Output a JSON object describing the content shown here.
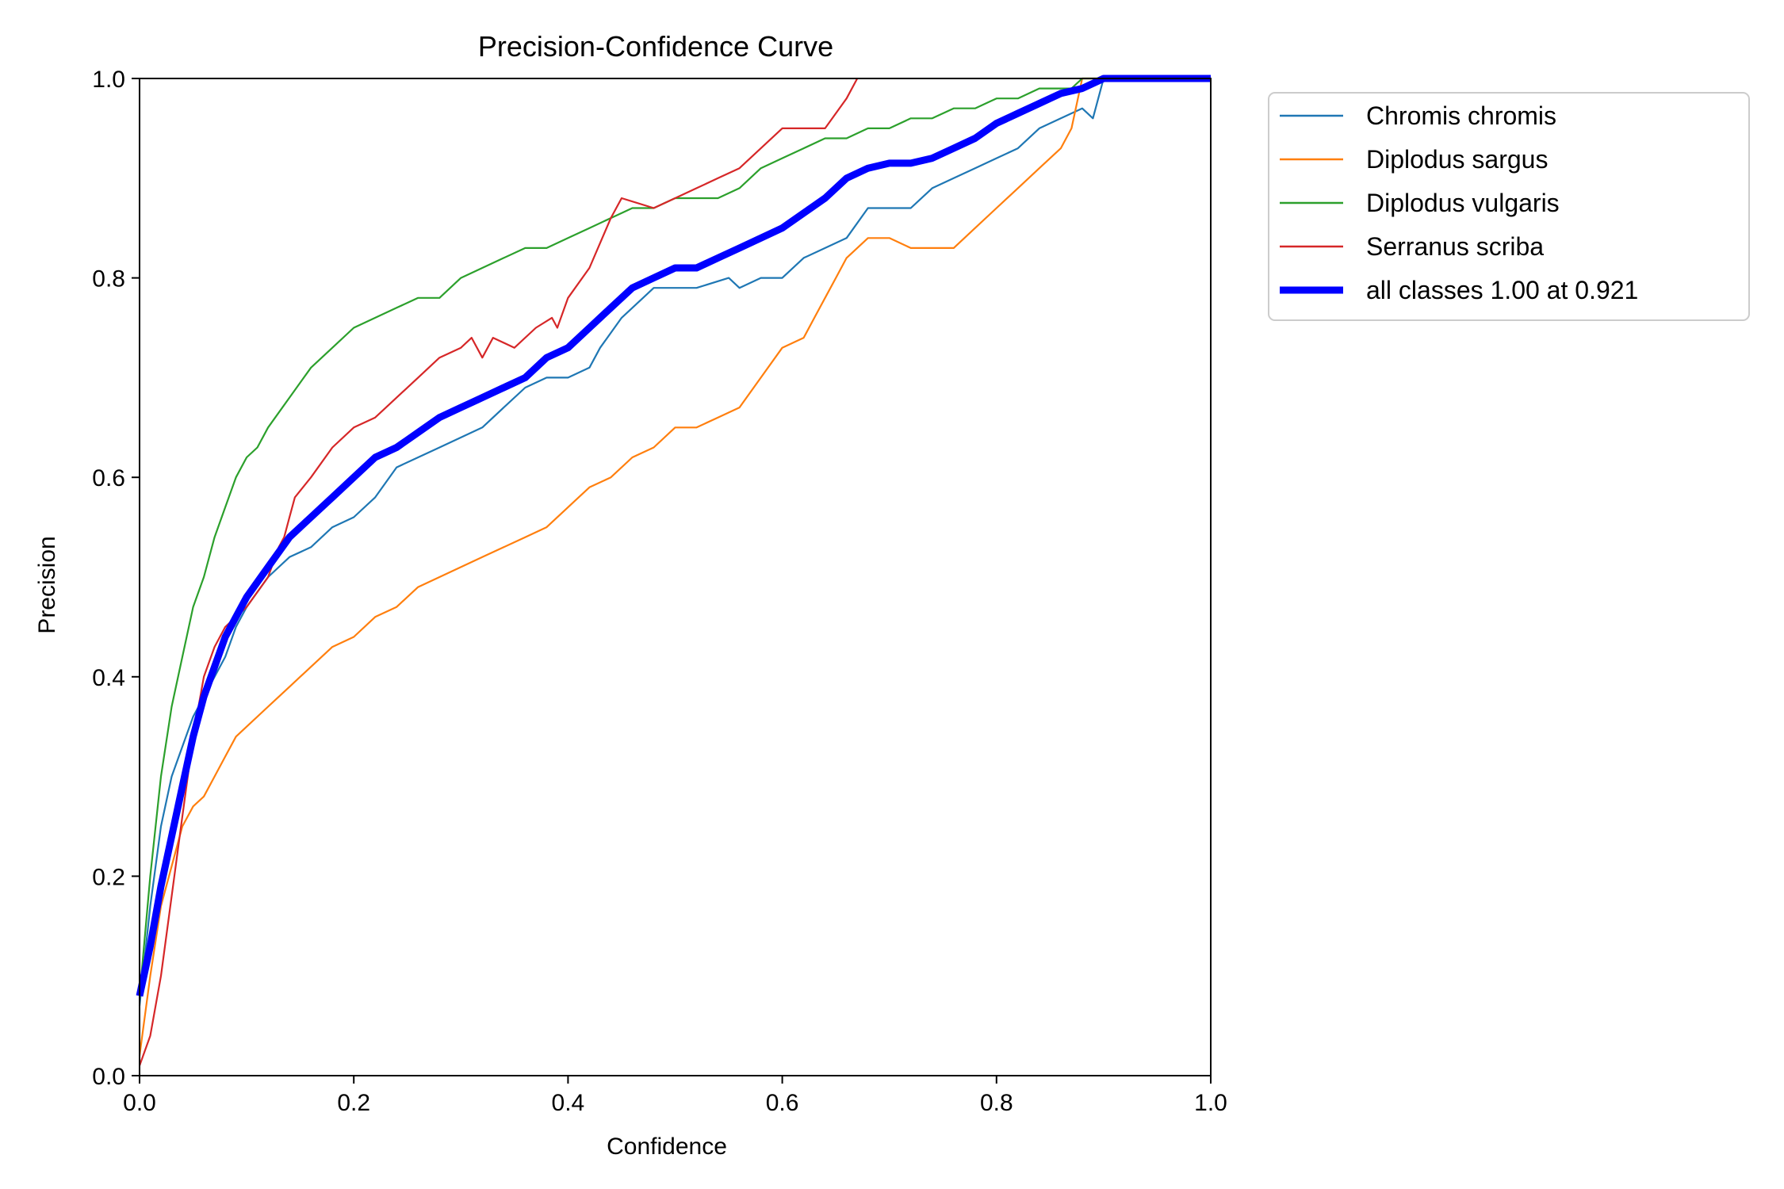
{
  "chart_data": {
    "type": "line",
    "title": "Precision-Confidence Curve",
    "xlabel": "Confidence",
    "ylabel": "Precision",
    "xlim": [
      0,
      1
    ],
    "ylim": [
      0,
      1
    ],
    "xticks": [
      0.0,
      0.2,
      0.4,
      0.6,
      0.8,
      1.0
    ],
    "yticks": [
      0.0,
      0.2,
      0.4,
      0.6,
      0.8,
      1.0
    ],
    "tick_labels": [
      "0.0",
      "0.2",
      "0.4",
      "0.6",
      "0.8",
      "1.0"
    ],
    "grid": false,
    "legend_position": "outside-top-right",
    "series": [
      {
        "name": "Chromis chromis",
        "color": "#1f77b4",
        "x": [
          0.0,
          0.01,
          0.02,
          0.03,
          0.04,
          0.05,
          0.06,
          0.07,
          0.08,
          0.09,
          0.1,
          0.12,
          0.14,
          0.16,
          0.18,
          0.2,
          0.22,
          0.24,
          0.26,
          0.28,
          0.3,
          0.32,
          0.34,
          0.36,
          0.38,
          0.4,
          0.42,
          0.43,
          0.45,
          0.47,
          0.48,
          0.5,
          0.52,
          0.55,
          0.56,
          0.58,
          0.6,
          0.62,
          0.64,
          0.66,
          0.68,
          0.7,
          0.72,
          0.74,
          0.76,
          0.78,
          0.8,
          0.82,
          0.84,
          0.86,
          0.88,
          0.89,
          0.9,
          0.92,
          0.94,
          1.0
        ],
        "y": [
          0.07,
          0.17,
          0.25,
          0.3,
          0.33,
          0.36,
          0.38,
          0.4,
          0.42,
          0.45,
          0.47,
          0.5,
          0.52,
          0.53,
          0.55,
          0.56,
          0.58,
          0.61,
          0.62,
          0.63,
          0.64,
          0.65,
          0.67,
          0.69,
          0.7,
          0.7,
          0.71,
          0.73,
          0.76,
          0.78,
          0.79,
          0.79,
          0.79,
          0.8,
          0.79,
          0.8,
          0.8,
          0.82,
          0.83,
          0.84,
          0.87,
          0.87,
          0.87,
          0.89,
          0.9,
          0.91,
          0.92,
          0.93,
          0.95,
          0.96,
          0.97,
          0.96,
          1.0,
          1.0,
          1.0,
          1.0
        ]
      },
      {
        "name": "Diplodus sargus",
        "color": "#ff7f0e",
        "x": [
          0.0,
          0.01,
          0.02,
          0.03,
          0.04,
          0.05,
          0.06,
          0.07,
          0.08,
          0.09,
          0.1,
          0.12,
          0.14,
          0.16,
          0.18,
          0.2,
          0.22,
          0.24,
          0.26,
          0.28,
          0.3,
          0.32,
          0.34,
          0.36,
          0.38,
          0.4,
          0.42,
          0.44,
          0.46,
          0.48,
          0.5,
          0.52,
          0.54,
          0.56,
          0.58,
          0.6,
          0.62,
          0.63,
          0.64,
          0.65,
          0.66,
          0.68,
          0.7,
          0.72,
          0.74,
          0.76,
          0.78,
          0.8,
          0.82,
          0.84,
          0.86,
          0.87,
          0.88,
          0.9,
          0.92,
          1.0
        ],
        "y": [
          0.02,
          0.1,
          0.17,
          0.21,
          0.25,
          0.27,
          0.28,
          0.3,
          0.32,
          0.34,
          0.35,
          0.37,
          0.39,
          0.41,
          0.43,
          0.44,
          0.46,
          0.47,
          0.49,
          0.5,
          0.51,
          0.52,
          0.53,
          0.54,
          0.55,
          0.57,
          0.59,
          0.6,
          0.62,
          0.63,
          0.65,
          0.65,
          0.66,
          0.67,
          0.7,
          0.73,
          0.74,
          0.76,
          0.78,
          0.8,
          0.82,
          0.84,
          0.84,
          0.83,
          0.83,
          0.83,
          0.85,
          0.87,
          0.89,
          0.91,
          0.93,
          0.95,
          1.0,
          1.0,
          1.0,
          1.0
        ]
      },
      {
        "name": "Diplodus vulgaris",
        "color": "#2ca02c",
        "x": [
          0.0,
          0.01,
          0.02,
          0.03,
          0.04,
          0.05,
          0.06,
          0.07,
          0.08,
          0.09,
          0.1,
          0.11,
          0.12,
          0.14,
          0.16,
          0.18,
          0.2,
          0.22,
          0.24,
          0.26,
          0.28,
          0.3,
          0.32,
          0.34,
          0.36,
          0.38,
          0.4,
          0.42,
          0.44,
          0.46,
          0.48,
          0.5,
          0.52,
          0.54,
          0.56,
          0.58,
          0.6,
          0.62,
          0.64,
          0.66,
          0.68,
          0.7,
          0.72,
          0.74,
          0.76,
          0.78,
          0.8,
          0.82,
          0.84,
          0.86,
          0.87,
          0.88,
          0.9,
          1.0
        ],
        "y": [
          0.08,
          0.2,
          0.3,
          0.37,
          0.42,
          0.47,
          0.5,
          0.54,
          0.57,
          0.6,
          0.62,
          0.63,
          0.65,
          0.68,
          0.71,
          0.73,
          0.75,
          0.76,
          0.77,
          0.78,
          0.78,
          0.8,
          0.81,
          0.82,
          0.83,
          0.83,
          0.84,
          0.85,
          0.86,
          0.87,
          0.87,
          0.88,
          0.88,
          0.88,
          0.89,
          0.91,
          0.92,
          0.93,
          0.94,
          0.94,
          0.95,
          0.95,
          0.96,
          0.96,
          0.97,
          0.97,
          0.98,
          0.98,
          0.99,
          0.99,
          0.99,
          1.0,
          1.0,
          1.0
        ]
      },
      {
        "name": "Serranus scriba",
        "color": "#d62728",
        "x": [
          0.0,
          0.01,
          0.02,
          0.03,
          0.04,
          0.05,
          0.06,
          0.07,
          0.08,
          0.09,
          0.1,
          0.12,
          0.13,
          0.135,
          0.14,
          0.145,
          0.16,
          0.18,
          0.2,
          0.22,
          0.24,
          0.26,
          0.28,
          0.3,
          0.31,
          0.32,
          0.33,
          0.35,
          0.37,
          0.385,
          0.39,
          0.4,
          0.42,
          0.44,
          0.45,
          0.48,
          0.5,
          0.52,
          0.54,
          0.56,
          0.58,
          0.6,
          0.62,
          0.64,
          0.66,
          0.67
        ],
        "y": [
          0.01,
          0.04,
          0.1,
          0.18,
          0.26,
          0.34,
          0.4,
          0.43,
          0.45,
          0.46,
          0.47,
          0.5,
          0.53,
          0.54,
          0.56,
          0.58,
          0.6,
          0.63,
          0.65,
          0.66,
          0.68,
          0.7,
          0.72,
          0.73,
          0.74,
          0.72,
          0.74,
          0.73,
          0.75,
          0.76,
          0.75,
          0.78,
          0.81,
          0.86,
          0.88,
          0.87,
          0.88,
          0.89,
          0.9,
          0.91,
          0.93,
          0.95,
          0.95,
          0.95,
          0.98,
          1.0
        ]
      },
      {
        "name": "all classes 1.00 at 0.921",
        "color": "#0000ff",
        "x": [
          0.0,
          0.01,
          0.02,
          0.03,
          0.04,
          0.05,
          0.06,
          0.07,
          0.08,
          0.09,
          0.1,
          0.12,
          0.14,
          0.16,
          0.18,
          0.2,
          0.22,
          0.24,
          0.26,
          0.28,
          0.3,
          0.32,
          0.34,
          0.36,
          0.38,
          0.4,
          0.42,
          0.44,
          0.46,
          0.48,
          0.5,
          0.52,
          0.54,
          0.56,
          0.58,
          0.6,
          0.62,
          0.64,
          0.66,
          0.68,
          0.7,
          0.72,
          0.74,
          0.76,
          0.78,
          0.8,
          0.82,
          0.84,
          0.86,
          0.88,
          0.9,
          0.92,
          0.95,
          1.0
        ],
        "y": [
          0.08,
          0.13,
          0.19,
          0.24,
          0.29,
          0.34,
          0.38,
          0.41,
          0.44,
          0.46,
          0.48,
          0.51,
          0.54,
          0.56,
          0.58,
          0.6,
          0.62,
          0.63,
          0.645,
          0.66,
          0.67,
          0.68,
          0.69,
          0.7,
          0.72,
          0.73,
          0.75,
          0.77,
          0.79,
          0.8,
          0.81,
          0.81,
          0.82,
          0.83,
          0.84,
          0.85,
          0.865,
          0.88,
          0.9,
          0.91,
          0.915,
          0.915,
          0.92,
          0.93,
          0.94,
          0.955,
          0.965,
          0.975,
          0.985,
          0.99,
          1.0,
          1.0,
          1.0,
          1.0
        ]
      }
    ]
  }
}
